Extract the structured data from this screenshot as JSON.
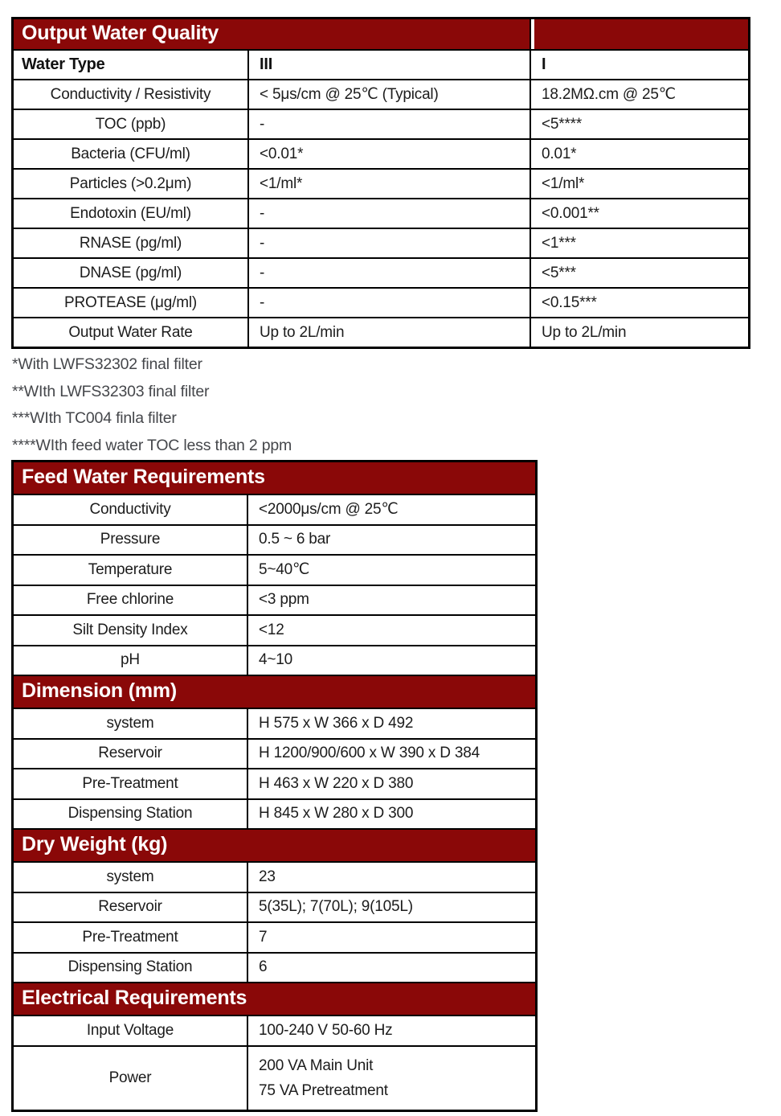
{
  "colors": {
    "maroon": "#8A0808",
    "border": "#000000",
    "text": "#1c1c1c",
    "footnote": "#45474b"
  },
  "output_water_quality": {
    "title": "Output Water Quality",
    "columns": {
      "label": "Water Type",
      "type3": "III",
      "type1": "I"
    },
    "rows": [
      {
        "label": "Conductivity / Resistivity",
        "type3": "< 5μs/cm @ 25℃ (Typical)",
        "type1": "18.2MΩ.cm @ 25℃"
      },
      {
        "label": "TOC (ppb)",
        "type3": "-",
        "type1": "<5****"
      },
      {
        "label": "Bacteria (CFU/ml)",
        "type3": "<0.01*",
        "type1": "0.01*"
      },
      {
        "label": "Particles (>0.2μm)",
        "type3": "<1/ml*",
        "type1": "<1/ml*"
      },
      {
        "label": "Endotoxin (EU/ml)",
        "type3": "-",
        "type1": "<0.001**"
      },
      {
        "label": "RNASE (pg/ml)",
        "type3": "-",
        "type1": "<1***"
      },
      {
        "label": "DNASE (pg/ml)",
        "type3": "-",
        "type1": "<5***"
      },
      {
        "label": "PROTEASE (μg/ml)",
        "type3": "-",
        "type1": "<0.15***"
      },
      {
        "label": "Output Water Rate",
        "type3": "Up to 2L/min",
        "type1": "Up to 2L/min"
      }
    ]
  },
  "footnotes": [
    "*With LWFS32302 final filter",
    "**WIth LWFS32303 final filter",
    "***WIth TC004 finla filter",
    "****WIth feed water TOC less than 2 ppm"
  ],
  "feed_water_requirements": {
    "title": "Feed Water Requirements",
    "rows": [
      {
        "label": "Conductivity",
        "value": "<2000μs/cm @ 25℃"
      },
      {
        "label": "Pressure",
        "value": "0.5 ~ 6 bar"
      },
      {
        "label": "Temperature",
        "value": "5~40℃"
      },
      {
        "label": "Free chlorine",
        "value": "<3 ppm"
      },
      {
        "label": "Silt Density Index",
        "value": "<12"
      },
      {
        "label": "pH",
        "value": "4~10"
      }
    ]
  },
  "dimension": {
    "title": "Dimension (mm)",
    "rows": [
      {
        "label": "system",
        "value": "H 575 x W 366 x D 492"
      },
      {
        "label": "Reservoir",
        "value": "H 1200/900/600 x W 390 x D 384"
      },
      {
        "label": "Pre-Treatment",
        "value": "H 463 x W 220 x D 380"
      },
      {
        "label": "Dispensing Station",
        "value": "H 845 x W 280 x D 300"
      }
    ]
  },
  "dry_weight": {
    "title": "Dry Weight (kg)",
    "rows": [
      {
        "label": "system",
        "value": "23"
      },
      {
        "label": "Reservoir",
        "value": "5(35L); 7(70L); 9(105L)"
      },
      {
        "label": "Pre-Treatment",
        "value": "7"
      },
      {
        "label": "Dispensing Station",
        "value": "6"
      }
    ]
  },
  "electrical": {
    "title": "Electrical Requirements",
    "input_voltage": {
      "label": "Input Voltage",
      "value": "100-240 V 50-60 Hz"
    },
    "power": {
      "label": "Power",
      "line1": "200 VA Main Unit",
      "line2": "75 VA Pretreatment"
    }
  }
}
